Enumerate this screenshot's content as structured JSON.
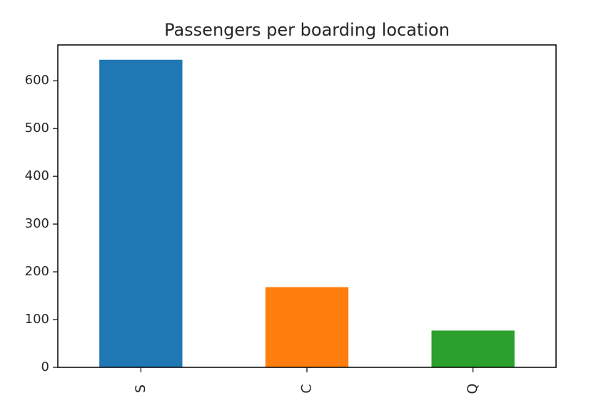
{
  "chart_data": {
    "type": "bar",
    "title": "Passengers per boarding location",
    "xlabel": "",
    "ylabel": "",
    "categories": [
      "S",
      "C",
      "Q"
    ],
    "values": [
      644,
      168,
      77
    ],
    "colors": [
      "#1f77b4",
      "#ff7f0e",
      "#2ca02c"
    ],
    "ylim": [
      0,
      675
    ],
    "yticks": [
      0,
      100,
      200,
      300,
      400,
      500,
      600
    ],
    "xtick_rotation": "vertical",
    "grid": false,
    "legend": "none"
  }
}
